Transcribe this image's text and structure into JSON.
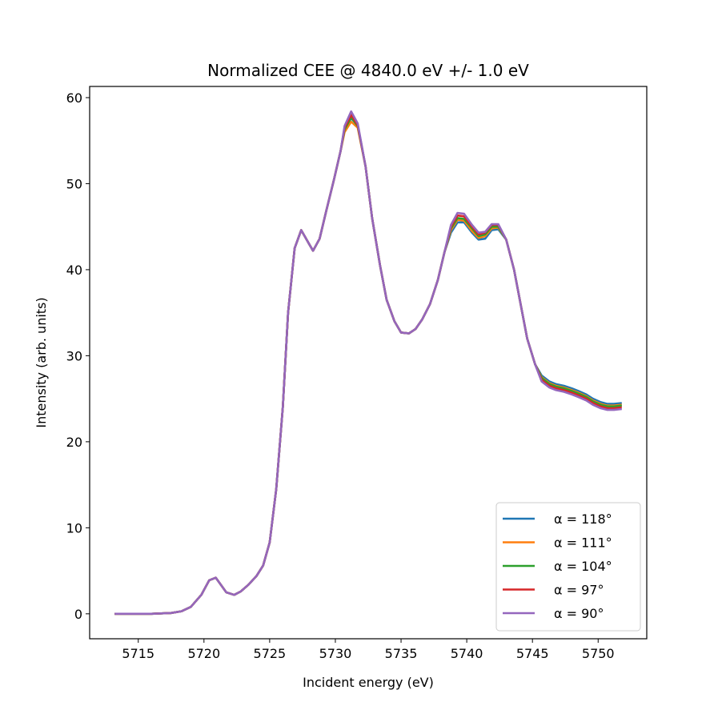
{
  "chart_data": {
    "type": "line",
    "title": "Normalized CEE @ 4840.0 eV +/- 1.0 eV",
    "xlabel": "Incident energy (eV)",
    "ylabel": "Intensity (arb. units)",
    "xlim": [
      5711.3,
      5753.7
    ],
    "ylim": [
      -2.9,
      61.3
    ],
    "xticks": [
      5715,
      5720,
      5725,
      5730,
      5735,
      5740,
      5745,
      5750
    ],
    "yticks": [
      0,
      10,
      20,
      30,
      40,
      50,
      60
    ],
    "grid": false,
    "legend_placement": "lower-right",
    "x": [
      5713.2,
      5716,
      5717.5,
      5718.3,
      5719,
      5719.8,
      5720.4,
      5720.9,
      5721.7,
      5722.3,
      5722.8,
      5723.4,
      5724,
      5724.5,
      5725,
      5725.5,
      5726,
      5726.4,
      5726.9,
      5727.4,
      5728,
      5728.3,
      5728.8,
      5729.3,
      5729.9,
      5730.4,
      5730.7,
      5731.2,
      5731.7,
      5732.3,
      5732.8,
      5733.4,
      5733.9,
      5734.5,
      5735,
      5735.6,
      5736.1,
      5736.6,
      5737.2,
      5737.8,
      5738.3,
      5738.8,
      5739.3,
      5739.8,
      5740.4,
      5740.9,
      5741.4,
      5741.9,
      5742.4,
      5743,
      5743.6,
      5744.1,
      5744.6,
      5745.2,
      5745.7,
      5746.3,
      5746.8,
      5747.4,
      5748,
      5748.5,
      5749.1,
      5749.6,
      5750.2,
      5750.7,
      5751.2,
      5751.8
    ],
    "series": [
      {
        "name": "α = 118°",
        "color": "#1f77b4",
        "values": [
          0,
          0,
          0.1,
          0.3,
          0.8,
          2.2,
          3.9,
          4.2,
          2.5,
          2.2,
          2.6,
          3.4,
          4.4,
          5.6,
          8.3,
          14.5,
          24,
          35,
          42.5,
          44.6,
          43,
          42.2,
          43.6,
          46.8,
          50.5,
          53.8,
          56.4,
          57.6,
          56.8,
          52,
          46,
          40.5,
          36.5,
          34,
          32.7,
          32.6,
          33.1,
          34.2,
          36,
          38.8,
          42,
          44.3,
          45.5,
          45.5,
          44.3,
          43.5,
          43.6,
          44.6,
          44.7,
          43.5,
          40,
          36,
          32,
          29,
          27.7,
          27.0,
          26.7,
          26.5,
          26.2,
          25.9,
          25.5,
          25.0,
          24.6,
          24.4,
          24.4,
          24.5
        ]
      },
      {
        "name": "α = 111°",
        "color": "#ff7f0e",
        "values": [
          0,
          0,
          0.1,
          0.3,
          0.8,
          2.2,
          3.9,
          4.2,
          2.5,
          2.2,
          2.6,
          3.4,
          4.4,
          5.6,
          8.3,
          14.5,
          24,
          35,
          42.5,
          44.6,
          43,
          42.2,
          43.6,
          46.8,
          50.5,
          53.8,
          56.0,
          57.2,
          56.5,
          52,
          46,
          40.5,
          36.5,
          34,
          32.7,
          32.6,
          33.1,
          34.2,
          36,
          38.8,
          42,
          44.6,
          45.8,
          45.7,
          44.5,
          43.7,
          43.9,
          44.8,
          44.9,
          43.5,
          40,
          36,
          32,
          29,
          27.5,
          26.8,
          26.5,
          26.3,
          26.0,
          25.7,
          25.3,
          24.8,
          24.4,
          24.2,
          24.2,
          24.3
        ]
      },
      {
        "name": "α = 104°",
        "color": "#2ca02c",
        "values": [
          0,
          0,
          0.1,
          0.3,
          0.8,
          2.2,
          3.9,
          4.2,
          2.5,
          2.2,
          2.6,
          3.4,
          4.4,
          5.6,
          8.3,
          14.5,
          24,
          35,
          42.5,
          44.6,
          43,
          42.2,
          43.6,
          46.8,
          50.5,
          53.8,
          56.3,
          57.7,
          56.7,
          52,
          46,
          40.5,
          36.5,
          34,
          32.7,
          32.6,
          33.1,
          34.2,
          36,
          38.8,
          42,
          44.8,
          46.0,
          45.9,
          44.8,
          43.9,
          44.1,
          45.0,
          45.0,
          43.5,
          40,
          36,
          32,
          29,
          27.4,
          26.7,
          26.4,
          26.2,
          25.9,
          25.6,
          25.2,
          24.7,
          24.3,
          24.1,
          24.1,
          24.2
        ]
      },
      {
        "name": "α = 97°",
        "color": "#d62728",
        "values": [
          0,
          0,
          0.1,
          0.3,
          0.8,
          2.2,
          3.9,
          4.2,
          2.5,
          2.2,
          2.6,
          3.4,
          4.4,
          5.6,
          8.3,
          14.5,
          24,
          35,
          42.5,
          44.6,
          43,
          42.2,
          43.6,
          46.8,
          50.5,
          53.8,
          56.5,
          58.0,
          56.8,
          52,
          46,
          40.5,
          36.5,
          34,
          32.7,
          32.6,
          33.1,
          34.2,
          36,
          38.8,
          42,
          45.0,
          46.3,
          46.2,
          45.0,
          44.1,
          44.3,
          45.2,
          45.2,
          43.5,
          40,
          36,
          32,
          29,
          27.2,
          26.5,
          26.2,
          26.0,
          25.7,
          25.4,
          25.0,
          24.5,
          24.1,
          23.9,
          23.9,
          24.0
        ]
      },
      {
        "name": "α = 90°",
        "color": "#9467bd",
        "values": [
          0,
          0,
          0.1,
          0.3,
          0.8,
          2.2,
          3.9,
          4.2,
          2.5,
          2.2,
          2.6,
          3.4,
          4.4,
          5.6,
          8.3,
          14.5,
          24,
          35,
          42.5,
          44.6,
          43,
          42.2,
          43.6,
          46.8,
          50.5,
          53.8,
          56.7,
          58.4,
          57.0,
          52,
          46,
          40.5,
          36.5,
          34,
          32.7,
          32.6,
          33.1,
          34.2,
          36,
          38.8,
          42,
          45.2,
          46.6,
          46.5,
          45.2,
          44.3,
          44.4,
          45.3,
          45.3,
          43.5,
          40,
          36,
          32,
          29,
          27.0,
          26.3,
          26.0,
          25.8,
          25.5,
          25.2,
          24.8,
          24.3,
          23.9,
          23.7,
          23.7,
          23.8
        ]
      }
    ]
  }
}
